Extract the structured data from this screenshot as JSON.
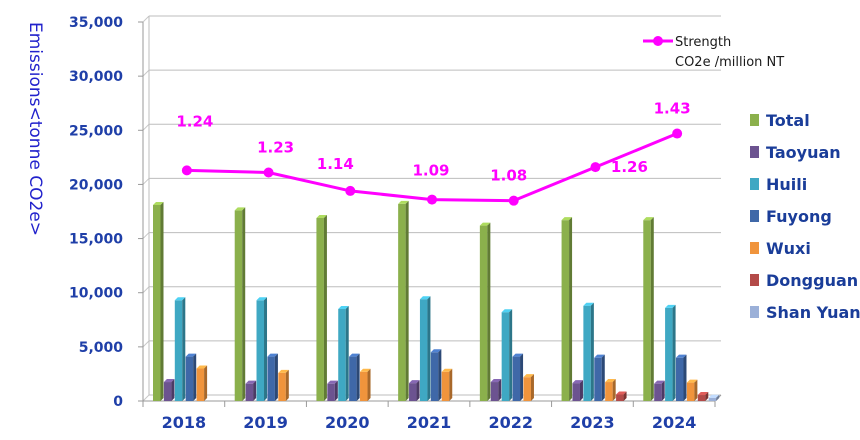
{
  "chart_data": {
    "type": "bar",
    "categories": [
      "2018",
      "2019",
      "2020",
      "2021",
      "2022",
      "2023",
      "2024"
    ],
    "ylabel": "Emissions<tonne CO2e>",
    "ylim": [
      0,
      35000
    ],
    "yticks": [
      "0",
      "5,000",
      "10,000",
      "15,000",
      "20,000",
      "25,000",
      "30,000",
      "35,000"
    ],
    "grid": true,
    "legend_position": "right",
    "series": [
      {
        "name": "Total",
        "color": "#8bb04c",
        "values": [
          18100,
          17600,
          16900,
          18200,
          16200,
          16700,
          16700
        ]
      },
      {
        "name": "Taoyuan",
        "color": "#6c5390",
        "values": [
          1750,
          1600,
          1600,
          1650,
          1750,
          1650,
          1600
        ]
      },
      {
        "name": "Huili",
        "color": "#3fa8c3",
        "values": [
          9300,
          9300,
          8500,
          9400,
          8200,
          8800,
          8600
        ]
      },
      {
        "name": "Fuyong",
        "color": "#3f68a8",
        "values": [
          4100,
          4100,
          4100,
          4500,
          4100,
          4000,
          4000
        ]
      },
      {
        "name": "Wuxi",
        "color": "#f0943c",
        "values": [
          3000,
          2600,
          2700,
          2700,
          2200,
          1750,
          1700
        ]
      },
      {
        "name": "Dongguan",
        "color": "#b34a48",
        "values": [
          0,
          0,
          0,
          0,
          0,
          600,
          550
        ]
      },
      {
        "name": "Shan Yuan",
        "color": "#9bb0d8",
        "values": [
          0,
          0,
          0,
          0,
          0,
          0,
          300
        ]
      }
    ],
    "strength_series": {
      "name": "Strength",
      "subtitle": "CO2e /million NT",
      "color": "#ff00ff",
      "values": [
        1.24,
        1.23,
        1.14,
        1.09,
        1.08,
        1.26,
        1.43
      ],
      "labels": [
        "1.24",
        "1.23",
        "1.14",
        "1.09",
        "1.08",
        "1.26",
        "1.43"
      ],
      "plot_y": [
        21300,
        21100,
        19400,
        18600,
        18500,
        21600,
        24700
      ]
    }
  }
}
